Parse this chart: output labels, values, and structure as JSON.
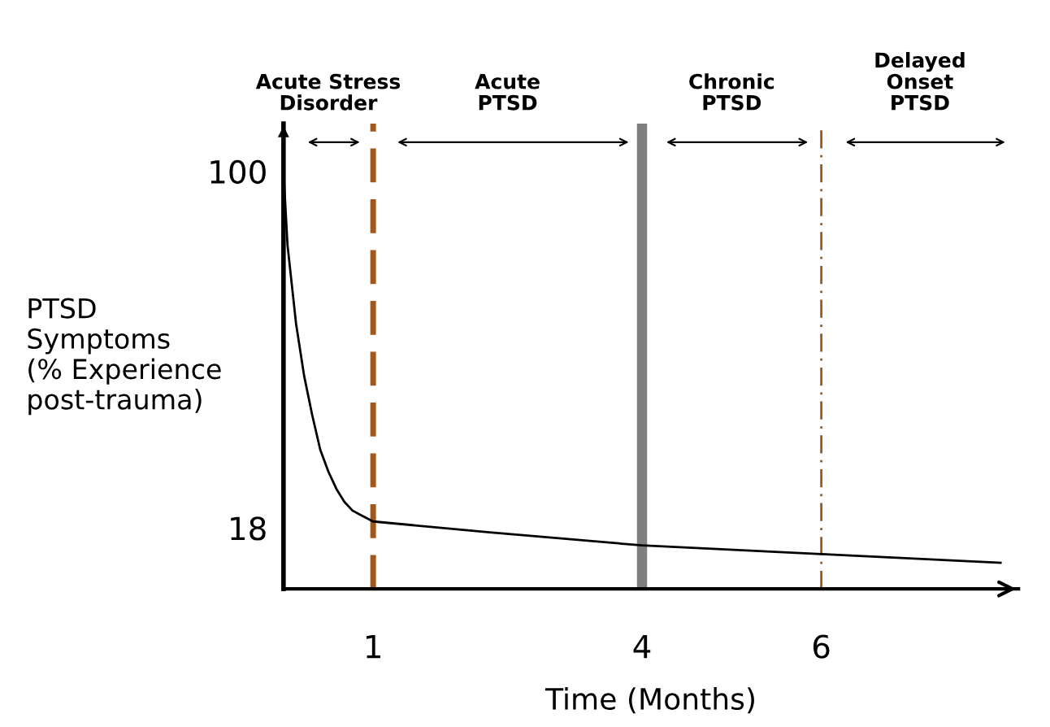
{
  "chart_data": {
    "type": "line",
    "xlabel": "Time (Months)",
    "ylabel": "PTSD\nSymptoms\n(% Experience\npost-trauma)",
    "x": [
      0,
      0.045,
      0.14,
      0.23,
      0.32,
      0.41,
      0.5,
      0.59,
      0.68,
      0.77,
      0.86,
      1.0,
      2.3,
      4,
      6,
      8
    ],
    "series": [
      {
        "color": "#000000",
        "values": [
          100,
          83,
          65,
          53,
          44,
          36,
          31,
          27,
          24,
          22,
          21,
          19.5,
          17,
          14,
          12,
          10
        ]
      }
    ],
    "xlim": [
      0,
      8.2
    ],
    "ylim": [
      4,
      111
    ],
    "xticks": [
      1,
      4,
      6
    ],
    "yticks": [
      18,
      100
    ],
    "grid": false,
    "legend": false,
    "marker": "none",
    "line_style": "solid",
    "ref_lines": [
      {
        "axis": "x",
        "value": 1,
        "color": "#a0581c",
        "line_style": "dashed"
      },
      {
        "axis": "x",
        "value": 4,
        "color": "#7f7f7f",
        "line_style": "solid"
      },
      {
        "axis": "x",
        "value": 6,
        "color": "#a0581c",
        "line_style": "dashdot"
      }
    ],
    "annotations": [
      "Acute Stress\nDisorder",
      "Acute\nPTSD",
      "Chronic\nPTSD",
      "Delayed\nOnset\nPTSD"
    ]
  }
}
